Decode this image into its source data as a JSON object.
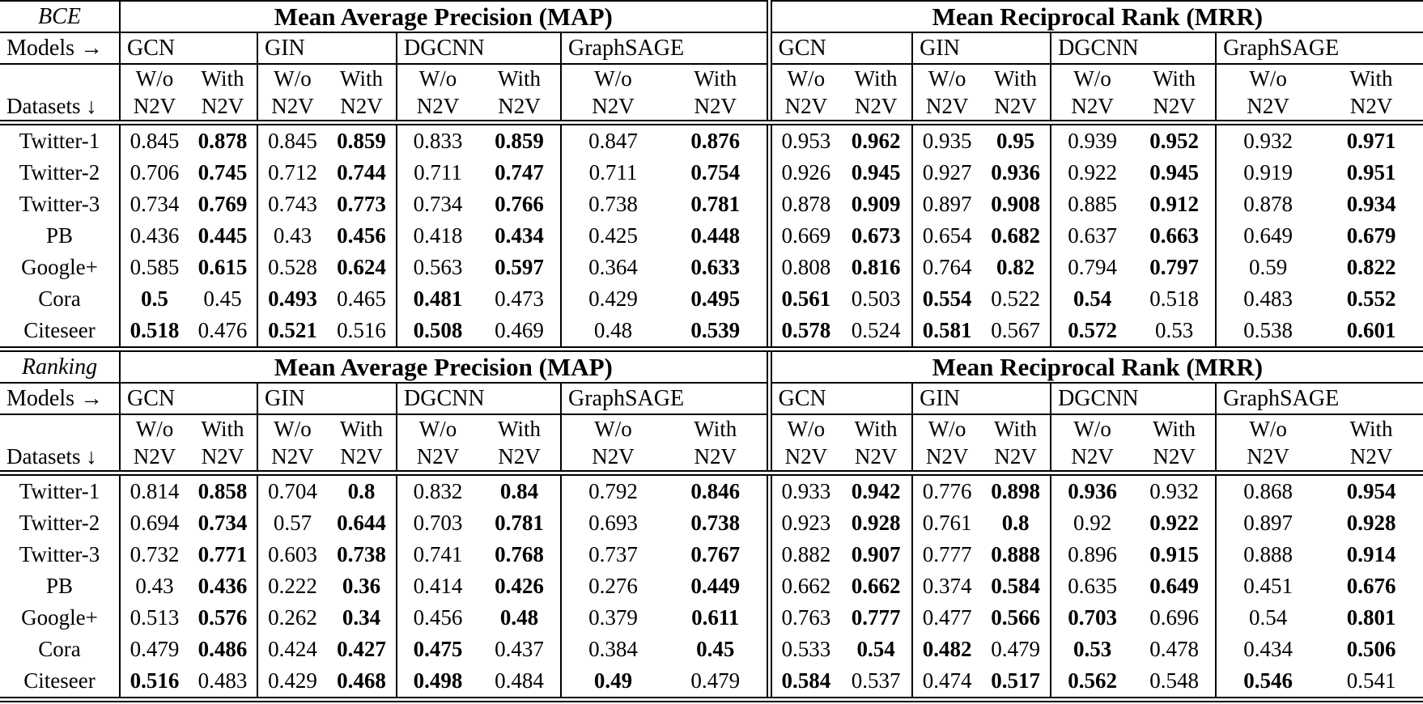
{
  "table": {
    "metrics": [
      "Mean Average Precision (MAP)",
      "Mean Reciprocal Rank (MRR)"
    ],
    "models": [
      "GCN",
      "GIN",
      "DGCNN",
      "GraphSAGE"
    ],
    "corner_models": "Models →",
    "corner_datasets": "Datasets ↓",
    "wo": "W/o",
    "with_label": "With",
    "n2v": "N2V",
    "sections": [
      {
        "loss": "BCE",
        "rows": [
          {
            "dataset": "Twitter-1",
            "values": [
              "0.845",
              "0.878",
              "0.845",
              "0.859",
              "0.833",
              "0.859",
              "0.847",
              "0.876",
              "0.953",
              "0.962",
              "0.935",
              "0.95",
              "0.939",
              "0.952",
              "0.932",
              "0.971"
            ],
            "bold": [
              0,
              1,
              0,
              1,
              0,
              1,
              0,
              1,
              0,
              1,
              0,
              1,
              0,
              1,
              0,
              1
            ]
          },
          {
            "dataset": "Twitter-2",
            "values": [
              "0.706",
              "0.745",
              "0.712",
              "0.744",
              "0.711",
              "0.747",
              "0.711",
              "0.754",
              "0.926",
              "0.945",
              "0.927",
              "0.936",
              "0.922",
              "0.945",
              "0.919",
              "0.951"
            ],
            "bold": [
              0,
              1,
              0,
              1,
              0,
              1,
              0,
              1,
              0,
              1,
              0,
              1,
              0,
              1,
              0,
              1
            ]
          },
          {
            "dataset": "Twitter-3",
            "values": [
              "0.734",
              "0.769",
              "0.743",
              "0.773",
              "0.734",
              "0.766",
              "0.738",
              "0.781",
              "0.878",
              "0.909",
              "0.897",
              "0.908",
              "0.885",
              "0.912",
              "0.878",
              "0.934"
            ],
            "bold": [
              0,
              1,
              0,
              1,
              0,
              1,
              0,
              1,
              0,
              1,
              0,
              1,
              0,
              1,
              0,
              1
            ]
          },
          {
            "dataset": "PB",
            "values": [
              "0.436",
              "0.445",
              "0.43",
              "0.456",
              "0.418",
              "0.434",
              "0.425",
              "0.448",
              "0.669",
              "0.673",
              "0.654",
              "0.682",
              "0.637",
              "0.663",
              "0.649",
              "0.679"
            ],
            "bold": [
              0,
              1,
              0,
              1,
              0,
              1,
              0,
              1,
              0,
              1,
              0,
              1,
              0,
              1,
              0,
              1
            ]
          },
          {
            "dataset": "Google+",
            "values": [
              "0.585",
              "0.615",
              "0.528",
              "0.624",
              "0.563",
              "0.597",
              "0.364",
              "0.633",
              "0.808",
              "0.816",
              "0.764",
              "0.82",
              "0.794",
              "0.797",
              "0.59",
              "0.822"
            ],
            "bold": [
              0,
              1,
              0,
              1,
              0,
              1,
              0,
              1,
              0,
              1,
              0,
              1,
              0,
              1,
              0,
              1
            ]
          },
          {
            "dataset": "Cora",
            "values": [
              "0.5",
              "0.45",
              "0.493",
              "0.465",
              "0.481",
              "0.473",
              "0.429",
              "0.495",
              "0.561",
              "0.503",
              "0.554",
              "0.522",
              "0.54",
              "0.518",
              "0.483",
              "0.552"
            ],
            "bold": [
              1,
              0,
              1,
              0,
              1,
              0,
              0,
              1,
              1,
              0,
              1,
              0,
              1,
              0,
              0,
              1
            ]
          },
          {
            "dataset": "Citeseer",
            "values": [
              "0.518",
              "0.476",
              "0.521",
              "0.516",
              "0.508",
              "0.469",
              "0.48",
              "0.539",
              "0.578",
              "0.524",
              "0.581",
              "0.567",
              "0.572",
              "0.53",
              "0.538",
              "0.601"
            ],
            "bold": [
              1,
              0,
              1,
              0,
              1,
              0,
              0,
              1,
              1,
              0,
              1,
              0,
              1,
              0,
              0,
              1
            ]
          }
        ]
      },
      {
        "loss": "Ranking",
        "rows": [
          {
            "dataset": "Twitter-1",
            "values": [
              "0.814",
              "0.858",
              "0.704",
              "0.8",
              "0.832",
              "0.84",
              "0.792",
              "0.846",
              "0.933",
              "0.942",
              "0.776",
              "0.898",
              "0.936",
              "0.932",
              "0.868",
              "0.954"
            ],
            "bold": [
              0,
              1,
              0,
              1,
              0,
              1,
              0,
              1,
              0,
              1,
              0,
              1,
              1,
              0,
              0,
              1
            ]
          },
          {
            "dataset": "Twitter-2",
            "values": [
              "0.694",
              "0.734",
              "0.57",
              "0.644",
              "0.703",
              "0.781",
              "0.693",
              "0.738",
              "0.923",
              "0.928",
              "0.761",
              "0.8",
              "0.92",
              "0.922",
              "0.897",
              "0.928"
            ],
            "bold": [
              0,
              1,
              0,
              1,
              0,
              1,
              0,
              1,
              0,
              1,
              0,
              1,
              0,
              1,
              0,
              1
            ]
          },
          {
            "dataset": "Twitter-3",
            "values": [
              "0.732",
              "0.771",
              "0.603",
              "0.738",
              "0.741",
              "0.768",
              "0.737",
              "0.767",
              "0.882",
              "0.907",
              "0.777",
              "0.888",
              "0.896",
              "0.915",
              "0.888",
              "0.914"
            ],
            "bold": [
              0,
              1,
              0,
              1,
              0,
              1,
              0,
              1,
              0,
              1,
              0,
              1,
              0,
              1,
              0,
              1
            ]
          },
          {
            "dataset": "PB",
            "values": [
              "0.43",
              "0.436",
              "0.222",
              "0.36",
              "0.414",
              "0.426",
              "0.276",
              "0.449",
              "0.662",
              "0.662",
              "0.374",
              "0.584",
              "0.635",
              "0.649",
              "0.451",
              "0.676"
            ],
            "bold": [
              0,
              1,
              0,
              1,
              0,
              1,
              0,
              1,
              0,
              1,
              0,
              1,
              0,
              1,
              0,
              1
            ]
          },
          {
            "dataset": "Google+",
            "values": [
              "0.513",
              "0.576",
              "0.262",
              "0.34",
              "0.456",
              "0.48",
              "0.379",
              "0.611",
              "0.763",
              "0.777",
              "0.477",
              "0.566",
              "0.703",
              "0.696",
              "0.54",
              "0.801"
            ],
            "bold": [
              0,
              1,
              0,
              1,
              0,
              1,
              0,
              1,
              0,
              1,
              0,
              1,
              1,
              0,
              0,
              1
            ]
          },
          {
            "dataset": "Cora",
            "values": [
              "0.479",
              "0.486",
              "0.424",
              "0.427",
              "0.475",
              "0.437",
              "0.384",
              "0.45",
              "0.533",
              "0.54",
              "0.482",
              "0.479",
              "0.53",
              "0.478",
              "0.434",
              "0.506"
            ],
            "bold": [
              0,
              1,
              0,
              1,
              1,
              0,
              0,
              1,
              0,
              1,
              1,
              0,
              1,
              0,
              0,
              1
            ]
          },
          {
            "dataset": "Citeseer",
            "values": [
              "0.516",
              "0.483",
              "0.429",
              "0.468",
              "0.498",
              "0.484",
              "0.49",
              "0.479",
              "0.584",
              "0.537",
              "0.474",
              "0.517",
              "0.562",
              "0.548",
              "0.546",
              "0.541"
            ],
            "bold": [
              1,
              0,
              0,
              1,
              1,
              0,
              1,
              0,
              1,
              0,
              0,
              1,
              1,
              0,
              1,
              0
            ]
          }
        ]
      }
    ]
  }
}
